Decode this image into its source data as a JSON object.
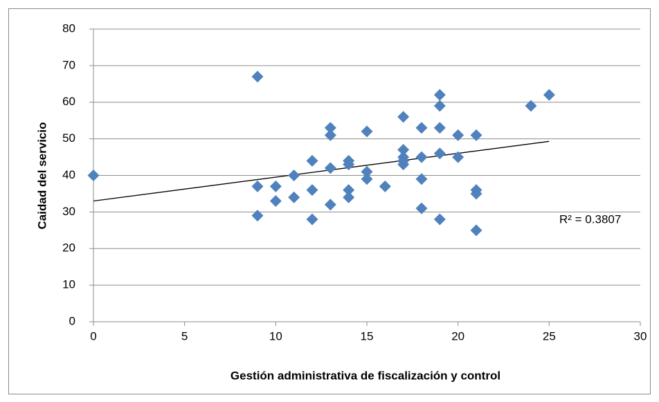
{
  "chart_data": {
    "type": "scatter",
    "x_label": "Gestión administrativa de fiscalización y control",
    "y_label": "Caidad del servicio",
    "annotation": "R² = 0.3807",
    "color": "#4f81bd",
    "grid": true,
    "xlim": [
      0,
      30
    ],
    "xticks": [
      0,
      5,
      10,
      15,
      20,
      25,
      30
    ],
    "ylim": [
      0,
      80
    ],
    "yticks": [
      0,
      10,
      20,
      30,
      40,
      50,
      60,
      70,
      80
    ],
    "x": [
      0,
      9,
      9,
      9,
      10,
      10,
      11,
      11,
      12,
      12,
      12,
      13,
      13,
      13,
      13,
      14,
      14,
      14,
      14,
      15,
      15,
      15,
      16,
      17,
      17,
      17,
      17,
      17,
      18,
      18,
      18,
      18,
      19,
      19,
      19,
      19,
      19,
      20,
      20,
      21,
      21,
      21,
      21,
      24,
      25
    ],
    "values": [
      40,
      67,
      37,
      29,
      37,
      33,
      40,
      34,
      44,
      36,
      28,
      53,
      51,
      42,
      32,
      44,
      43,
      36,
      34,
      52,
      41,
      39,
      37,
      56,
      47,
      45,
      44,
      43,
      53,
      45,
      39,
      31,
      62,
      59,
      53,
      46,
      28,
      51,
      45,
      51,
      36,
      35,
      25,
      59,
      62
    ],
    "trendline": {
      "x": [
        0,
        25
      ],
      "values": [
        33,
        49.3
      ]
    }
  }
}
